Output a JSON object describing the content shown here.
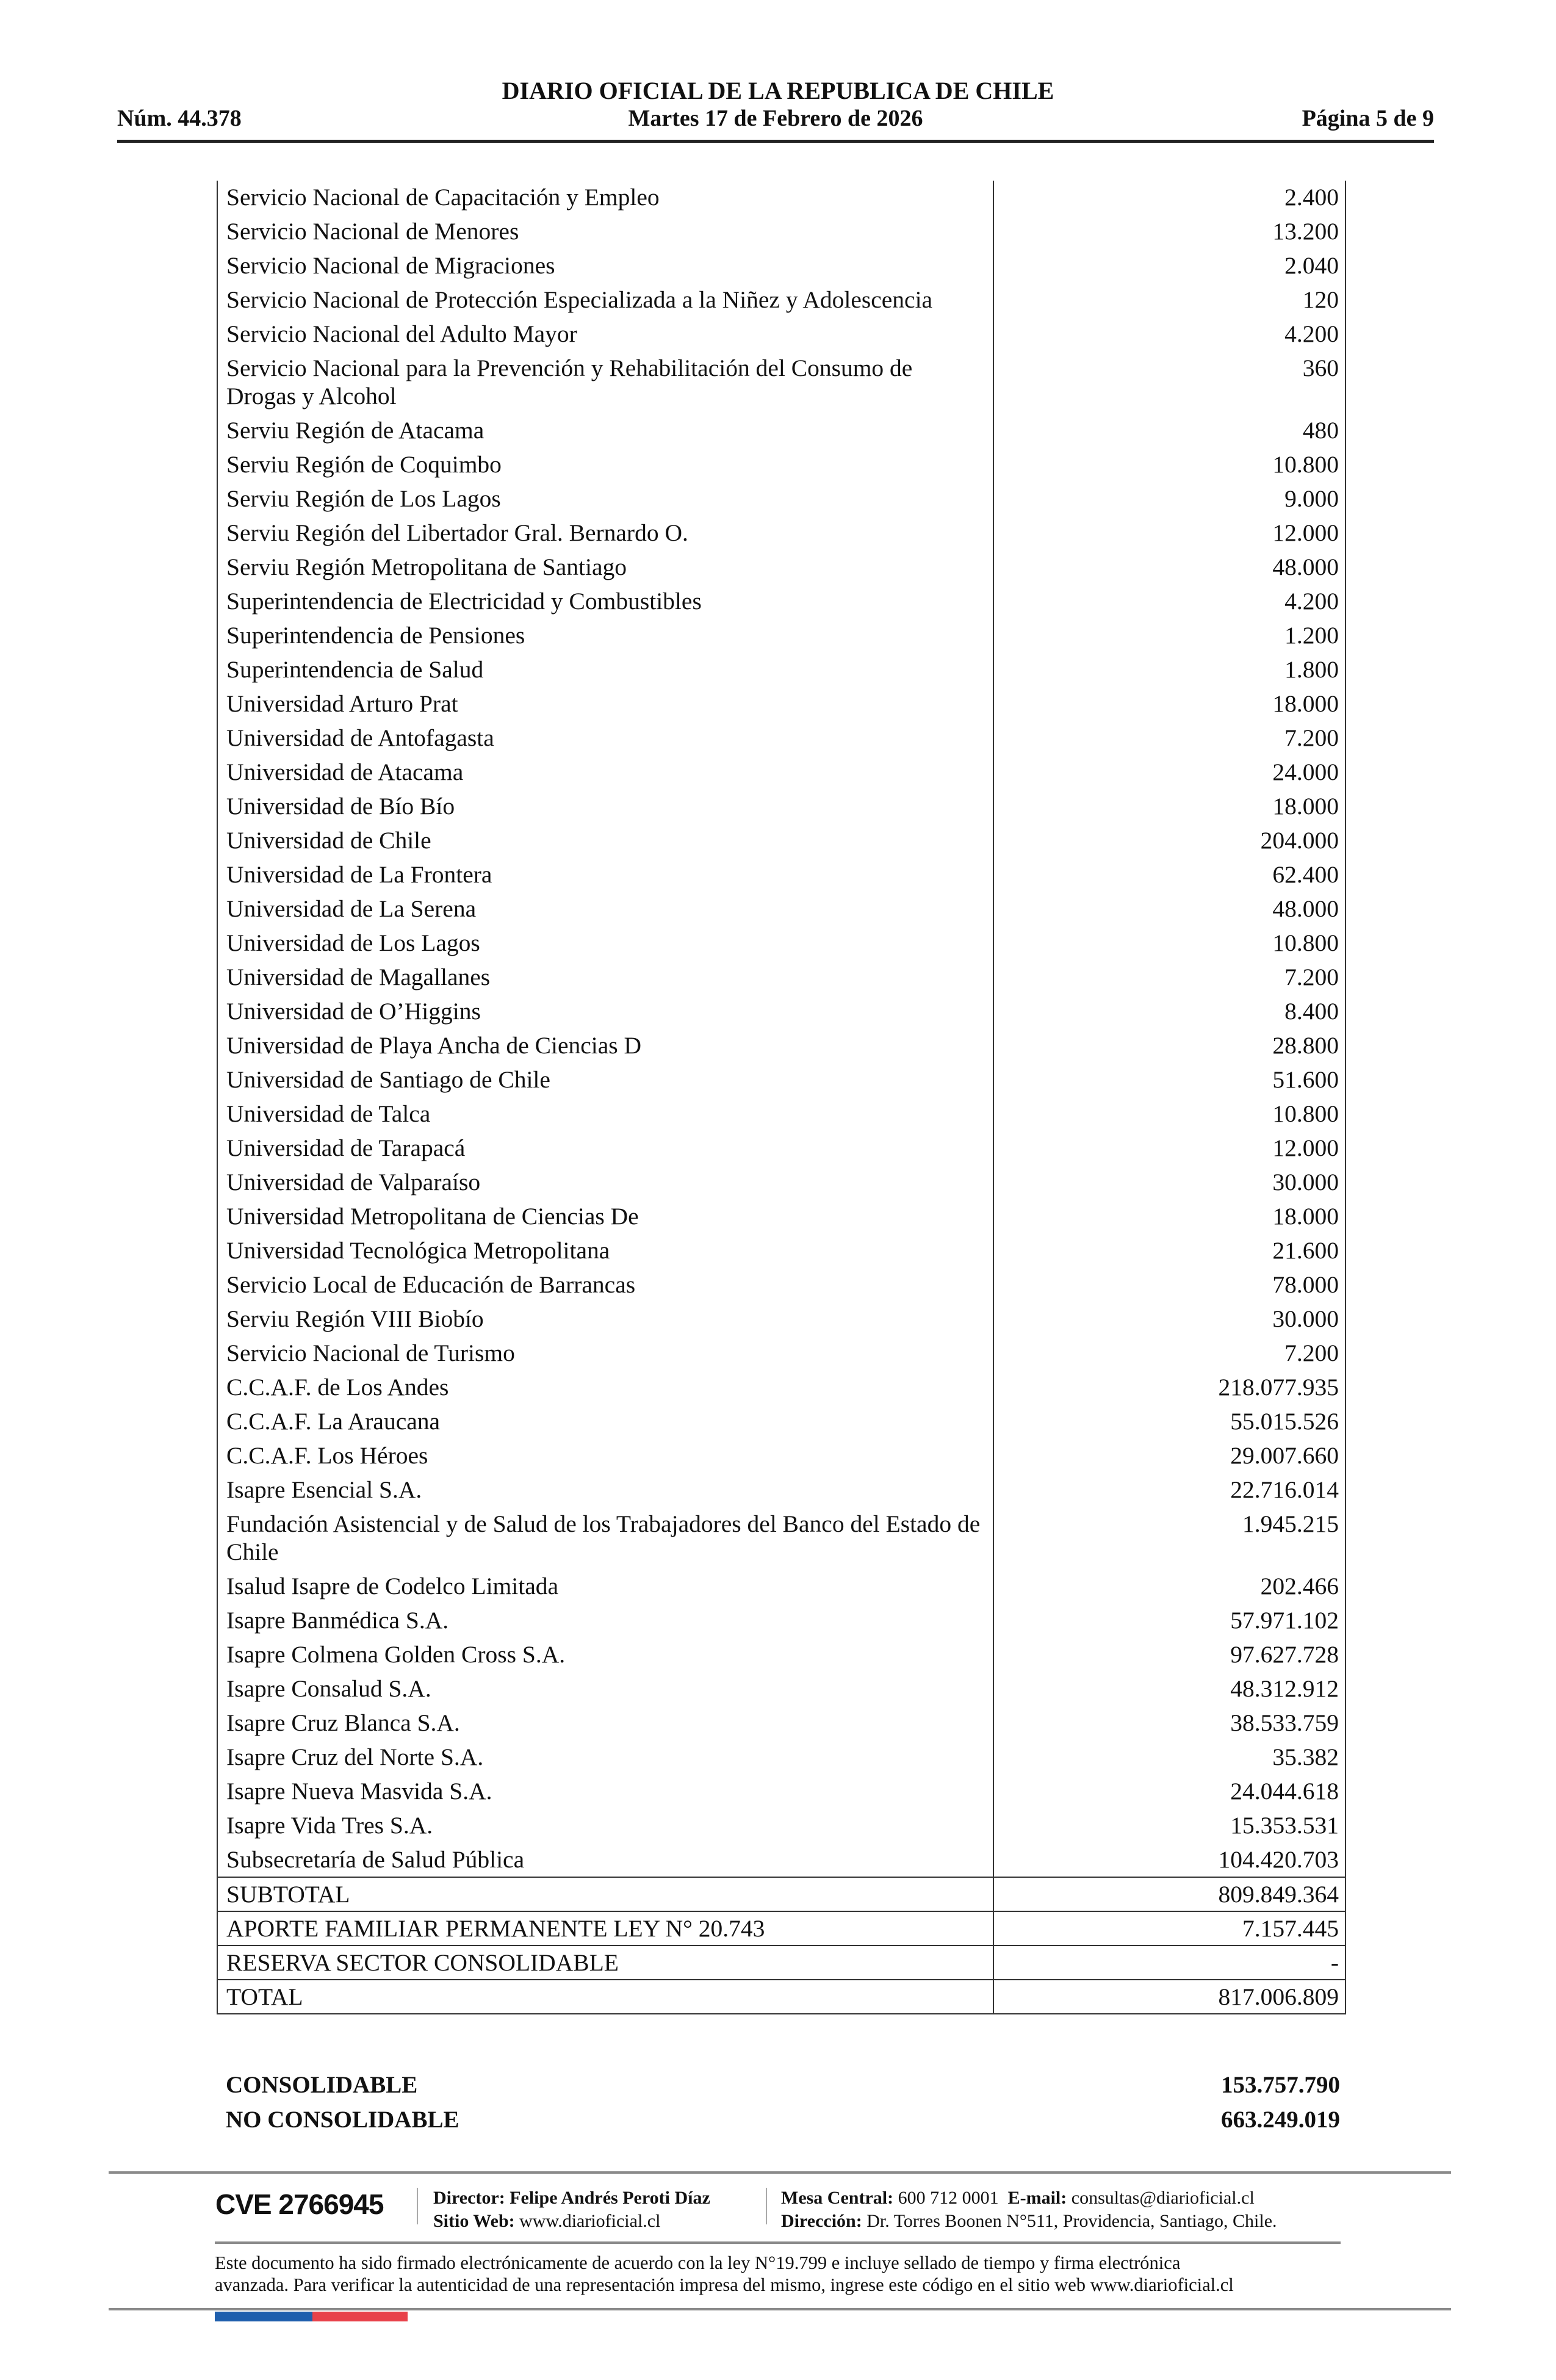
{
  "header": {
    "title": "DIARIO OFICIAL DE LA REPUBLICA DE CHILE",
    "number": "Núm. 44.378",
    "date": "Martes 17 de Febrero de 2026",
    "page": "Página 5 de 9"
  },
  "table": {
    "rows": [
      {
        "name": "Servicio Nacional de Capacitación y Empleo",
        "value": "2.400"
      },
      {
        "name": "Servicio Nacional de Menores",
        "value": "13.200"
      },
      {
        "name": "Servicio Nacional de Migraciones",
        "value": "2.040"
      },
      {
        "name": "Servicio Nacional de Protección Especializada a la Niñez y Adolescencia",
        "value": "120"
      },
      {
        "name": "Servicio Nacional del Adulto Mayor",
        "value": "4.200"
      },
      {
        "name": "Servicio Nacional para la Prevención y Rehabilitación del Consumo de Drogas y Alcohol",
        "value": "360"
      },
      {
        "name": "Serviu Región de Atacama",
        "value": "480"
      },
      {
        "name": "Serviu Región de Coquimbo",
        "value": "10.800"
      },
      {
        "name": "Serviu Región de Los Lagos",
        "value": "9.000"
      },
      {
        "name": "Serviu Región del Libertador Gral. Bernardo O.",
        "value": "12.000"
      },
      {
        "name": "Serviu Región Metropolitana de Santiago",
        "value": "48.000"
      },
      {
        "name": "Superintendencia de Electricidad y Combustibles",
        "value": "4.200"
      },
      {
        "name": "Superintendencia de Pensiones",
        "value": "1.200"
      },
      {
        "name": "Superintendencia de Salud",
        "value": "1.800"
      },
      {
        "name": "Universidad Arturo Prat",
        "value": "18.000"
      },
      {
        "name": "Universidad de Antofagasta",
        "value": "7.200"
      },
      {
        "name": "Universidad de Atacama",
        "value": "24.000"
      },
      {
        "name": "Universidad de Bío Bío",
        "value": "18.000"
      },
      {
        "name": "Universidad de Chile",
        "value": "204.000"
      },
      {
        "name": "Universidad de La Frontera",
        "value": "62.400"
      },
      {
        "name": "Universidad de La Serena",
        "value": "48.000"
      },
      {
        "name": "Universidad de Los Lagos",
        "value": "10.800"
      },
      {
        "name": "Universidad de Magallanes",
        "value": "7.200"
      },
      {
        "name": "Universidad de O’Higgins",
        "value": "8.400"
      },
      {
        "name": "Universidad de Playa Ancha de Ciencias D",
        "value": "28.800"
      },
      {
        "name": "Universidad de Santiago de Chile",
        "value": "51.600"
      },
      {
        "name": "Universidad de Talca",
        "value": "10.800"
      },
      {
        "name": "Universidad de Tarapacá",
        "value": "12.000"
      },
      {
        "name": "Universidad de Valparaíso",
        "value": "30.000"
      },
      {
        "name": "Universidad Metropolitana de Ciencias De",
        "value": "18.000"
      },
      {
        "name": "Universidad Tecnológica Metropolitana",
        "value": "21.600"
      },
      {
        "name": "Servicio Local de Educación de Barrancas",
        "value": "78.000"
      },
      {
        "name": "Serviu Región VIII Biobío",
        "value": "30.000"
      },
      {
        "name": "Servicio Nacional de Turismo",
        "value": "7.200"
      },
      {
        "name": "C.C.A.F.  de Los Andes",
        "value": "218.077.935"
      },
      {
        "name": "C.C.A.F.  La Araucana",
        "value": "55.015.526"
      },
      {
        "name": "C.C.A.F.  Los Héroes",
        "value": "29.007.660"
      },
      {
        "name": "Isapre Esencial S.A.",
        "value": "22.716.014"
      },
      {
        "name": "Fundación Asistencial y de Salud de los Trabajadores del Banco del Estado de Chile",
        "value": "1.945.215"
      },
      {
        "name": "Isalud Isapre de Codelco Limitada",
        "value": "202.466"
      },
      {
        "name": "Isapre Banmédica S.A.",
        "value": "57.971.102"
      },
      {
        "name": "Isapre Colmena Golden Cross S.A.",
        "value": "97.627.728"
      },
      {
        "name": "Isapre Consalud S.A.",
        "value": "48.312.912"
      },
      {
        "name": "Isapre Cruz Blanca S.A.",
        "value": "38.533.759"
      },
      {
        "name": "Isapre Cruz del Norte S.A.",
        "value": "35.382"
      },
      {
        "name": "Isapre Nueva Masvida S.A.",
        "value": "24.044.618"
      },
      {
        "name": "Isapre Vida Tres S.A.",
        "value": "15.353.531"
      },
      {
        "name": "Subsecretaría de Salud Pública",
        "value": "104.420.703"
      }
    ],
    "summary": [
      {
        "name": "SUBTOTAL",
        "value": "809.849.364"
      },
      {
        "name": "APORTE FAMILIAR PERMANENTE LEY N° 20.743",
        "value": "7.157.445"
      },
      {
        "name": "RESERVA SECTOR CONSOLIDABLE",
        "value": "-"
      },
      {
        "name": "TOTAL",
        "value": "817.006.809"
      }
    ]
  },
  "consolidation": [
    {
      "name": "CONSOLIDABLE",
      "value": "153.757.790"
    },
    {
      "name": "NO CONSOLIDABLE",
      "value": "663.249.019"
    }
  ],
  "footer": {
    "cve": "CVE 2766945",
    "director_label": "Director:",
    "director": "Felipe Andrés Peroti Díaz",
    "web_label": "Sitio Web:",
    "web": "www.diarioficial.cl",
    "phone_label": "Mesa Central:",
    "phone": "600 712 0001",
    "email_label": "E-mail:",
    "email": "consultas@diarioficial.cl",
    "address_label": "Dirección:",
    "address": "Dr. Torres Boonen N°511, Providencia, Santiago, Chile.",
    "disclaimer_1": "Este documento ha sido firmado electrónicamente de acuerdo con la ley N°19.799 e incluye sellado de tiempo y firma electrónica",
    "disclaimer_2": "avanzada. Para verificar la autenticidad de una representación impresa del mismo, ingrese este código en el sitio web www.diarioficial.cl",
    "flag_colors": [
      "#1f5fad",
      "#e8414a"
    ]
  }
}
